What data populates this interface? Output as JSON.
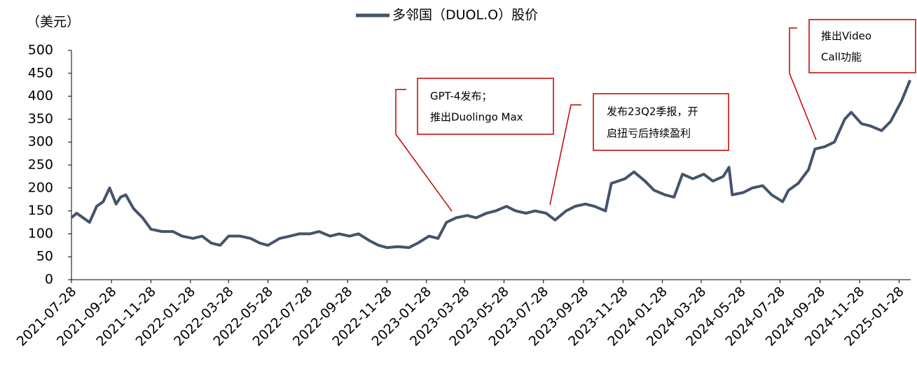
{
  "chart_data": {
    "type": "line",
    "y_axis_label": "（美元）",
    "series": [
      {
        "name": "多邻国（DUOL.O）股价",
        "color": "#44546a",
        "x": [
          "2021-07-28",
          "2021-08-05",
          "2021-08-15",
          "2021-08-25",
          "2021-09-05",
          "2021-09-15",
          "2021-09-25",
          "2021-10-05",
          "2021-10-12",
          "2021-10-20",
          "2021-11-01",
          "2021-11-15",
          "2021-11-28",
          "2021-12-15",
          "2022-01-01",
          "2022-01-15",
          "2022-02-01",
          "2022-02-15",
          "2022-03-01",
          "2022-03-15",
          "2022-03-28",
          "2022-04-15",
          "2022-05-01",
          "2022-05-15",
          "2022-05-28",
          "2022-06-15",
          "2022-07-01",
          "2022-07-15",
          "2022-08-01",
          "2022-08-15",
          "2022-09-01",
          "2022-09-15",
          "2022-10-01",
          "2022-10-15",
          "2022-11-01",
          "2022-11-15",
          "2022-11-28",
          "2022-12-15",
          "2023-01-01",
          "2023-01-15",
          "2023-02-01",
          "2023-02-15",
          "2023-02-28",
          "2023-03-15",
          "2023-04-01",
          "2023-04-15",
          "2023-05-01",
          "2023-05-15",
          "2023-06-01",
          "2023-06-15",
          "2023-07-01",
          "2023-07-15",
          "2023-08-01",
          "2023-08-15",
          "2023-09-01",
          "2023-09-15",
          "2023-10-01",
          "2023-10-15",
          "2023-11-01",
          "2023-11-10",
          "2023-12-01",
          "2023-12-15",
          "2024-01-01",
          "2024-01-15",
          "2024-02-01",
          "2024-02-15",
          "2024-02-28",
          "2024-03-15",
          "2024-04-01",
          "2024-04-15",
          "2024-05-01",
          "2024-05-10",
          "2024-05-15",
          "2024-06-01",
          "2024-06-15",
          "2024-07-01",
          "2024-07-15",
          "2024-08-01",
          "2024-08-10",
          "2024-08-25",
          "2024-09-10",
          "2024-09-20",
          "2024-10-05",
          "2024-10-20",
          "2024-11-05",
          "2024-11-15",
          "2024-12-01",
          "2024-12-15",
          "2025-01-01",
          "2025-01-15",
          "2025-02-01",
          "2025-02-14"
        ],
        "values": [
          135,
          145,
          135,
          125,
          160,
          170,
          200,
          165,
          180,
          185,
          155,
          135,
          110,
          105,
          105,
          95,
          90,
          95,
          80,
          75,
          95,
          95,
          90,
          80,
          75,
          90,
          95,
          100,
          100,
          105,
          95,
          100,
          95,
          100,
          85,
          75,
          70,
          72,
          70,
          80,
          95,
          90,
          125,
          135,
          140,
          135,
          145,
          150,
          160,
          150,
          145,
          150,
          145,
          130,
          150,
          160,
          165,
          160,
          150,
          210,
          220,
          235,
          215,
          195,
          185,
          180,
          230,
          220,
          230,
          215,
          225,
          245,
          185,
          190,
          200,
          205,
          185,
          170,
          195,
          210,
          240,
          285,
          290,
          300,
          350,
          365,
          340,
          335,
          325,
          345,
          390,
          435
        ]
      }
    ],
    "xlim": [
      "2021-07-28",
      "2025-02-15"
    ],
    "xticks": [
      "2021-07-28",
      "2021-09-28",
      "2021-11-28",
      "2022-01-28",
      "2022-03-28",
      "2022-05-28",
      "2022-07-28",
      "2022-09-28",
      "2022-11-28",
      "2023-01-28",
      "2023-03-28",
      "2023-05-28",
      "2023-07-28",
      "2023-09-28",
      "2023-11-28",
      "2024-01-28",
      "2024-03-28",
      "2024-05-28",
      "2024-07-28",
      "2024-09-28",
      "2024-11-28",
      "2025-01-28"
    ],
    "ylim": [
      0,
      500
    ],
    "yticks": [
      0,
      50,
      100,
      150,
      200,
      250,
      300,
      350,
      400,
      450,
      500
    ],
    "annotations": [
      [
        "GPT-4发布；",
        "推出Duolingo Max"
      ],
      [
        "发布23Q2季报，开",
        "启扭亏后持续盈利"
      ],
      [
        "推出Video",
        "Call功能"
      ]
    ]
  }
}
